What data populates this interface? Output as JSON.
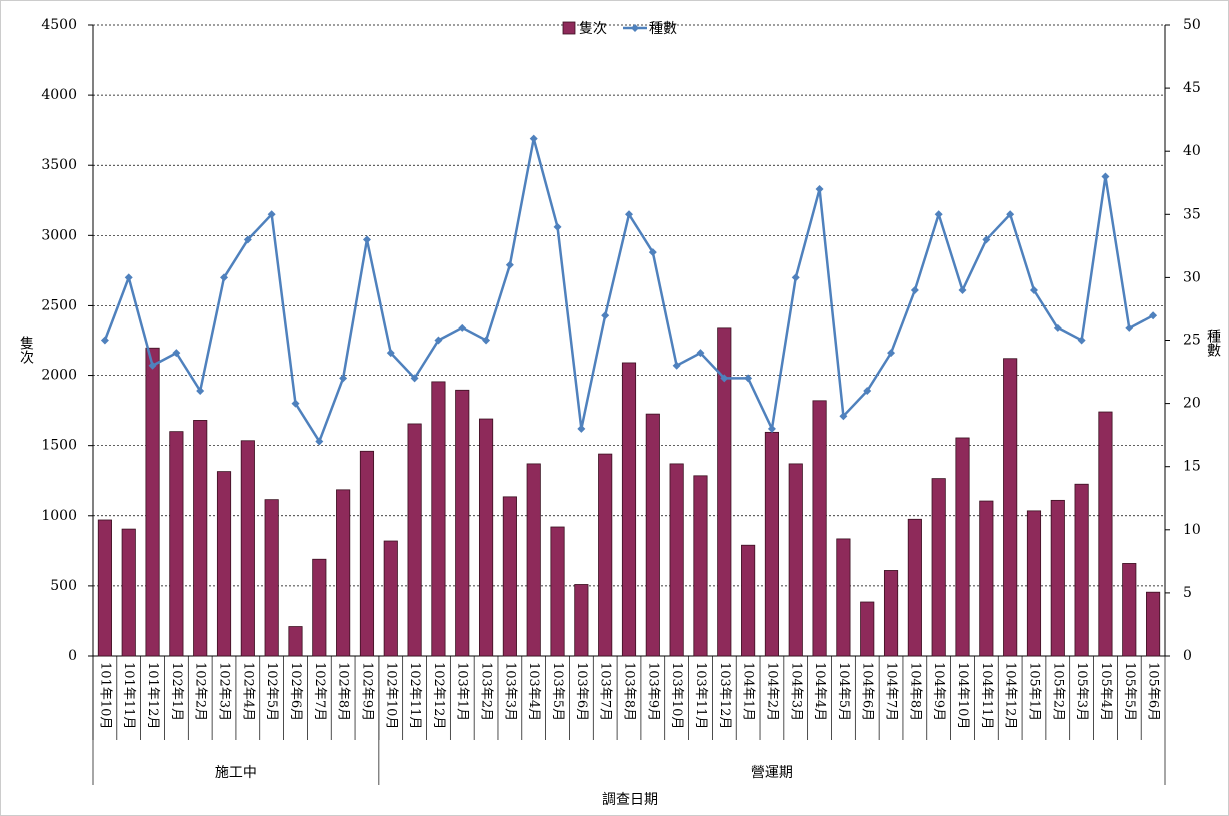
{
  "chart_data": {
    "type": "bar_line",
    "categories": [
      "101年10月",
      "101年11月",
      "101年12月",
      "102年1月",
      "102年2月",
      "102年3月",
      "102年4月",
      "102年5月",
      "102年6月",
      "102年7月",
      "102年8月",
      "102年9月",
      "102年10月",
      "102年11月",
      "102年12月",
      "103年1月",
      "103年2月",
      "103年3月",
      "103年4月",
      "103年5月",
      "103年6月",
      "103年7月",
      "103年8月",
      "103年9月",
      "103年10月",
      "103年11月",
      "103年12月",
      "104年1月",
      "104年2月",
      "104年3月",
      "104年4月",
      "104年5月",
      "104年6月",
      "104年7月",
      "104年8月",
      "104年9月",
      "104年10月",
      "104年11月",
      "104年12月",
      "105年1月",
      "105年2月",
      "105年3月",
      "105年4月",
      "105年5月",
      "105年6月"
    ],
    "groups": [
      {
        "label": "施工中",
        "span": 12
      },
      {
        "label": "營運期",
        "span": 33
      }
    ],
    "series": [
      {
        "name": "隻次",
        "type": "bar",
        "color": "#8e2a5a",
        "axis": "y",
        "values": [
          970,
          905,
          2195,
          1600,
          1680,
          1315,
          1535,
          1115,
          210,
          690,
          1185,
          1460,
          820,
          1655,
          1955,
          1895,
          1690,
          1135,
          1370,
          920,
          510,
          1440,
          2090,
          1725,
          1370,
          1285,
          2340,
          790,
          1595,
          1370,
          1820,
          835,
          385,
          610,
          975,
          1265,
          1555,
          1105,
          2120,
          1035,
          1110,
          1225,
          1740,
          660,
          455
        ]
      },
      {
        "name": "種數",
        "type": "line",
        "color": "#4f81bd",
        "axis": "y2",
        "values": [
          25,
          30,
          23,
          24,
          21,
          30,
          33,
          35,
          20,
          17,
          22,
          33,
          24,
          22,
          25,
          26,
          25,
          31,
          41,
          34,
          18,
          27,
          35,
          32,
          23,
          24,
          22,
          22,
          18,
          30,
          37,
          19,
          21,
          24,
          29,
          35,
          29,
          33,
          35,
          29,
          26,
          25,
          38,
          26,
          27
        ]
      }
    ],
    "x_label": "調查日期",
    "y_label": "隻次",
    "y2_label": "種數",
    "ylim": [
      0,
      4500
    ],
    "yticks": [
      0,
      500,
      1000,
      1500,
      2000,
      2500,
      3000,
      3500,
      4000,
      4500
    ],
    "y2lim": [
      0,
      50
    ],
    "y2ticks": [
      0,
      5,
      10,
      15,
      20,
      25,
      30,
      35,
      40,
      45,
      50
    ],
    "grid": true,
    "legend": "top"
  }
}
